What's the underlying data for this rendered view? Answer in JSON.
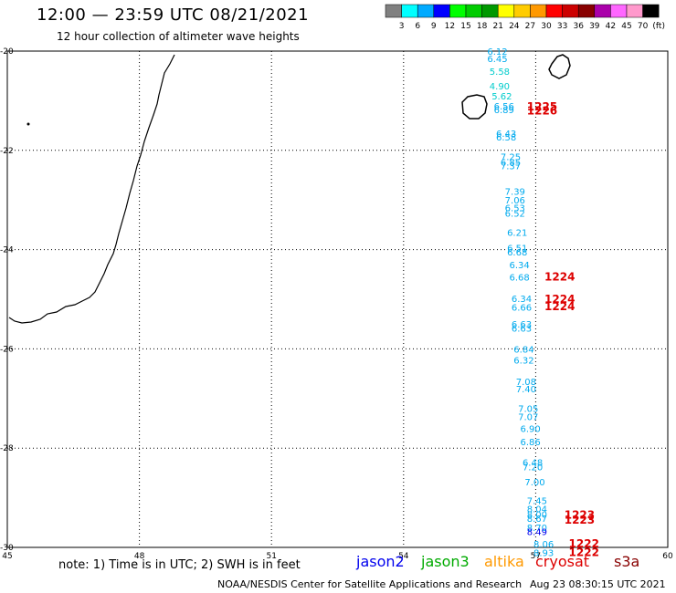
{
  "header": {
    "title": "12:00 — 23:59 UTC 08/21/2021",
    "subtitle": "12 hour collection of altimeter wave heights"
  },
  "color_scale": {
    "colors": [
      "#808080",
      "#00ffff",
      "#00aaff",
      "#0000ff",
      "#00ff00",
      "#00cc00",
      "#009900",
      "#ffff00",
      "#ffcc00",
      "#ff9900",
      "#ff0000",
      "#cc0000",
      "#880000",
      "#aa00aa",
      "#ff66ff",
      "#ff99cc",
      "#000000"
    ],
    "labels": [
      "3",
      "6",
      "9",
      "12",
      "15",
      "18",
      "21",
      "24",
      "27",
      "30",
      "33",
      "36",
      "39",
      "42",
      "45",
      "70",
      "(ft)"
    ]
  },
  "axes": {
    "lat_labels": [
      "-20",
      "-22",
      "-24",
      "-26",
      "-28",
      "-30"
    ],
    "lon_labels": [
      "45",
      "48",
      "51",
      "54",
      "57",
      "60"
    ],
    "lat_range": [
      -30,
      -20
    ],
    "lon_range": [
      45,
      60
    ]
  },
  "points": [
    {
      "lon": 55.9,
      "lat": -20.0,
      "v": "6.12",
      "c": "#00aaee"
    },
    {
      "lon": 55.9,
      "lat": -20.15,
      "v": "6.45",
      "c": "#00aaee"
    },
    {
      "lon": 55.95,
      "lat": -20.4,
      "v": "5.58",
      "c": "#00cccc"
    },
    {
      "lon": 55.95,
      "lat": -20.7,
      "v": "4.90",
      "c": "#00cccc"
    },
    {
      "lon": 56.0,
      "lat": -20.9,
      "v": "5.62",
      "c": "#00cccc"
    },
    {
      "lon": 56.05,
      "lat": -21.1,
      "v": "6.56",
      "c": "#00aaee"
    },
    {
      "lon": 56.05,
      "lat": -21.18,
      "v": "6.89",
      "c": "#00aaee"
    },
    {
      "lon": 56.1,
      "lat": -21.65,
      "v": "6.43",
      "c": "#00aaee"
    },
    {
      "lon": 56.1,
      "lat": -21.73,
      "v": "6.58",
      "c": "#00aaee"
    },
    {
      "lon": 56.2,
      "lat": -22.12,
      "v": "7.25",
      "c": "#00aaee"
    },
    {
      "lon": 56.2,
      "lat": -22.23,
      "v": "6.85",
      "c": "#00aaee"
    },
    {
      "lon": 56.2,
      "lat": -22.31,
      "v": "7.37",
      "c": "#00aaee"
    },
    {
      "lon": 56.3,
      "lat": -22.82,
      "v": "7.39",
      "c": "#00aaee"
    },
    {
      "lon": 56.3,
      "lat": -23.0,
      "v": "7.06",
      "c": "#00aaee"
    },
    {
      "lon": 56.3,
      "lat": -23.15,
      "v": "6.53",
      "c": "#00aaee"
    },
    {
      "lon": 56.3,
      "lat": -23.26,
      "v": "6.52",
      "c": "#00aaee"
    },
    {
      "lon": 56.35,
      "lat": -23.65,
      "v": "6.21",
      "c": "#00aaee"
    },
    {
      "lon": 56.35,
      "lat": -23.96,
      "v": "6.51",
      "c": "#00aaee"
    },
    {
      "lon": 56.35,
      "lat": -24.04,
      "v": "6.68",
      "c": "#00aaee"
    },
    {
      "lon": 56.4,
      "lat": -24.3,
      "v": "6.34",
      "c": "#00aaee"
    },
    {
      "lon": 56.4,
      "lat": -24.55,
      "v": "6.68",
      "c": "#00aaee"
    },
    {
      "lon": 56.45,
      "lat": -24.98,
      "v": "6.34",
      "c": "#00aaee"
    },
    {
      "lon": 56.45,
      "lat": -25.16,
      "v": "6.66",
      "c": "#00aaee"
    },
    {
      "lon": 56.45,
      "lat": -25.5,
      "v": "6.63",
      "c": "#00aaee"
    },
    {
      "lon": 56.45,
      "lat": -25.58,
      "v": "6.63",
      "c": "#00aaee"
    },
    {
      "lon": 56.5,
      "lat": -26.0,
      "v": "6.84",
      "c": "#00aaee"
    },
    {
      "lon": 56.5,
      "lat": -26.22,
      "v": "6.32",
      "c": "#00aaee"
    },
    {
      "lon": 56.55,
      "lat": -26.65,
      "v": "7.08",
      "c": "#00aaee"
    },
    {
      "lon": 56.55,
      "lat": -26.8,
      "v": "7.40",
      "c": "#00aaee"
    },
    {
      "lon": 56.6,
      "lat": -27.2,
      "v": "7.05",
      "c": "#00aaee"
    },
    {
      "lon": 56.6,
      "lat": -27.36,
      "v": "7.07",
      "c": "#00aaee"
    },
    {
      "lon": 56.65,
      "lat": -27.6,
      "v": "6.90",
      "c": "#00aaee"
    },
    {
      "lon": 56.65,
      "lat": -27.87,
      "v": "6.86",
      "c": "#00aaee"
    },
    {
      "lon": 56.7,
      "lat": -28.28,
      "v": "6.48",
      "c": "#00aaee"
    },
    {
      "lon": 56.7,
      "lat": -28.37,
      "v": "7.20",
      "c": "#00aaee"
    },
    {
      "lon": 56.75,
      "lat": -28.68,
      "v": "7.00",
      "c": "#00aaee"
    },
    {
      "lon": 56.8,
      "lat": -29.05,
      "v": "7.45",
      "c": "#00aaee"
    },
    {
      "lon": 56.8,
      "lat": -29.22,
      "v": "8.04",
      "c": "#00aaee"
    },
    {
      "lon": 56.8,
      "lat": -29.33,
      "v": "8.00",
      "c": "#00aaee"
    },
    {
      "lon": 56.8,
      "lat": -29.41,
      "v": "8.67",
      "c": "#00aaee"
    },
    {
      "lon": 56.8,
      "lat": -29.6,
      "v": "8.70",
      "c": "#00aaee"
    },
    {
      "lon": 56.8,
      "lat": -29.68,
      "v": "8.49",
      "c": "#0000ee"
    },
    {
      "lon": 56.95,
      "lat": -29.93,
      "v": "8.06",
      "c": "#00aaee"
    },
    {
      "lon": 56.95,
      "lat": -30.1,
      "v": "8.93",
      "c": "#00aaee"
    }
  ],
  "time_labels": [
    {
      "lon": 56.8,
      "lat": -21.12,
      "v": "1225",
      "c": "#dd0000"
    },
    {
      "lon": 56.8,
      "lat": -21.2,
      "v": "1226",
      "c": "#dd0000"
    },
    {
      "lon": 57.2,
      "lat": -24.55,
      "v": "1224",
      "c": "#dd0000"
    },
    {
      "lon": 57.2,
      "lat": -25.0,
      "v": "1224",
      "c": "#dd0000"
    },
    {
      "lon": 57.2,
      "lat": -25.15,
      "v": "1224",
      "c": "#dd0000"
    },
    {
      "lon": 57.65,
      "lat": -29.35,
      "v": "1223",
      "c": "#dd0000"
    },
    {
      "lon": 57.65,
      "lat": -29.45,
      "v": "1223",
      "c": "#dd0000"
    },
    {
      "lon": 57.75,
      "lat": -29.93,
      "v": "1222",
      "c": "#dd0000"
    },
    {
      "lon": 57.75,
      "lat": -30.1,
      "v": "1222",
      "c": "#dd0000"
    }
  ],
  "footer": {
    "note": "note:  1) Time is in UTC;  2) SWH is in feet",
    "satellites": [
      {
        "name": "jason2",
        "color": "#0000ee"
      },
      {
        "name": "jason3",
        "color": "#00aa00"
      },
      {
        "name": "altika",
        "color": "#ff9900"
      },
      {
        "name": "cryosat",
        "color": "#dd0000"
      },
      {
        "name": "s3a",
        "color": "#880000"
      }
    ],
    "credit": "NOAA/NESDIS Center for Satellite Applications and Research",
    "timestamp": "Aug 23 08:30:15 UTC 2021"
  }
}
